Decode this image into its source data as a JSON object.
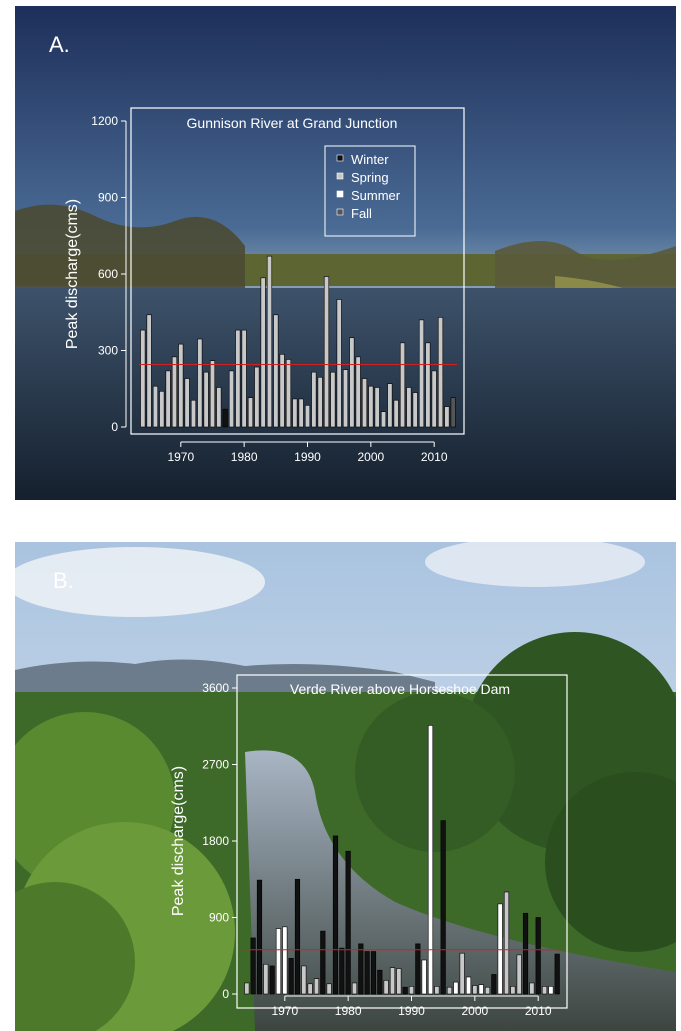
{
  "panels": [
    {
      "letter": "A."
    },
    {
      "letter": "B."
    }
  ],
  "chart_data": [
    {
      "type": "bar",
      "title": "Gunnison River at Grand Junction",
      "xlabel": "",
      "ylabel": "Peak discharge(cms)",
      "ylim": [
        0,
        1200
      ],
      "yticks": [
        0,
        300,
        600,
        900,
        1200
      ],
      "xticks": [
        1970,
        1980,
        1990,
        2000,
        2010
      ],
      "x": [
        1964,
        1965,
        1966,
        1967,
        1968,
        1969,
        1970,
        1971,
        1972,
        1973,
        1974,
        1975,
        1976,
        1977,
        1978,
        1979,
        1980,
        1981,
        1982,
        1983,
        1984,
        1985,
        1986,
        1987,
        1988,
        1989,
        1990,
        1991,
        1992,
        1993,
        1994,
        1995,
        1996,
        1997,
        1998,
        1999,
        2000,
        2001,
        2002,
        2003,
        2004,
        2005,
        2006,
        2007,
        2008,
        2009,
        2010,
        2011,
        2012,
        2013
      ],
      "values": [
        380,
        440,
        160,
        140,
        220,
        275,
        325,
        190,
        105,
        345,
        215,
        260,
        155,
        70,
        220,
        380,
        380,
        115,
        235,
        585,
        670,
        440,
        285,
        265,
        110,
        110,
        85,
        215,
        195,
        590,
        215,
        500,
        225,
        350,
        275,
        190,
        160,
        155,
        60,
        170,
        105,
        330,
        155,
        135,
        420,
        330,
        220,
        430,
        80,
        115
      ],
      "season": [
        "Spring",
        "Spring",
        "Spring",
        "Spring",
        "Spring",
        "Spring",
        "Spring",
        "Spring",
        "Spring",
        "Spring",
        "Spring",
        "Spring",
        "Spring",
        "Winter",
        "Spring",
        "Spring",
        "Spring",
        "Spring",
        "Spring",
        "Spring",
        "Spring",
        "Spring",
        "Spring",
        "Spring",
        "Spring",
        "Spring",
        "Spring",
        "Spring",
        "Spring",
        "Spring",
        "Spring",
        "Spring",
        "Spring",
        "Spring",
        "Spring",
        "Spring",
        "Spring",
        "Spring",
        "Spring",
        "Spring",
        "Spring",
        "Spring",
        "Spring",
        "Spring",
        "Spring",
        "Spring",
        "Spring",
        "Spring",
        "Spring",
        "Fall"
      ],
      "reference_line": 245,
      "legend": [
        "Winter",
        "Spring",
        "Summer",
        "Fall"
      ],
      "legend_position": "top-right",
      "colors": {
        "Winter": "#111111",
        "Spring": "#c8c8c8",
        "Summer": "#ffffff",
        "Fall": "#555555",
        "reference": "#cc2222"
      },
      "grid": false
    },
    {
      "type": "bar",
      "title": "Verde River above Horseshoe Dam",
      "xlabel": "",
      "ylabel": "Peak discharge(cms)",
      "ylim": [
        0,
        3600
      ],
      "yticks": [
        0,
        900,
        1800,
        2700,
        3600
      ],
      "xticks": [
        1970,
        1980,
        1990,
        2000,
        2010
      ],
      "x": [
        1964,
        1965,
        1966,
        1967,
        1968,
        1969,
        1970,
        1971,
        1972,
        1973,
        1974,
        1975,
        1976,
        1977,
        1978,
        1979,
        1980,
        1981,
        1982,
        1983,
        1984,
        1985,
        1986,
        1987,
        1988,
        1989,
        1990,
        1991,
        1992,
        1993,
        1994,
        1995,
        1996,
        1997,
        1998,
        1999,
        2000,
        2001,
        2002,
        2003,
        2004,
        2005,
        2006,
        2007,
        2008,
        2009,
        2010,
        2011,
        2012,
        2013
      ],
      "values": [
        130,
        660,
        1340,
        350,
        330,
        770,
        790,
        420,
        1350,
        330,
        120,
        180,
        740,
        120,
        1860,
        540,
        1680,
        130,
        590,
        500,
        500,
        280,
        160,
        310,
        300,
        80,
        90,
        590,
        400,
        3160,
        90,
        2040,
        80,
        140,
        480,
        200,
        100,
        110,
        80,
        230,
        1060,
        1200,
        90,
        460,
        950,
        130,
        900,
        90,
        90,
        470
      ],
      "season": [
        "Spring",
        "Winter",
        "Winter",
        "Spring",
        "Winter",
        "Summer",
        "Summer",
        "Winter",
        "Winter",
        "Spring",
        "Spring",
        "Spring",
        "Winter",
        "Spring",
        "Winter",
        "Winter",
        "Winter",
        "Spring",
        "Winter",
        "Winter",
        "Winter",
        "Winter",
        "Spring",
        "Spring",
        "Spring",
        "Winter",
        "Spring",
        "Winter",
        "Summer",
        "Summer",
        "Spring",
        "Winter",
        "Spring",
        "Summer",
        "Spring",
        "Summer",
        "Spring",
        "Summer",
        "Spring",
        "Winter",
        "Summer",
        "Spring",
        "Spring",
        "Spring",
        "Winter",
        "Spring",
        "Winter",
        "Spring",
        "Summer",
        "Winter"
      ],
      "reference_line": 520,
      "legend": [],
      "colors": {
        "Winter": "#111111",
        "Spring": "#c8c8c8",
        "Summer": "#ffffff",
        "Fall": "#555555",
        "reference": "#cc2222"
      },
      "grid": false
    }
  ]
}
